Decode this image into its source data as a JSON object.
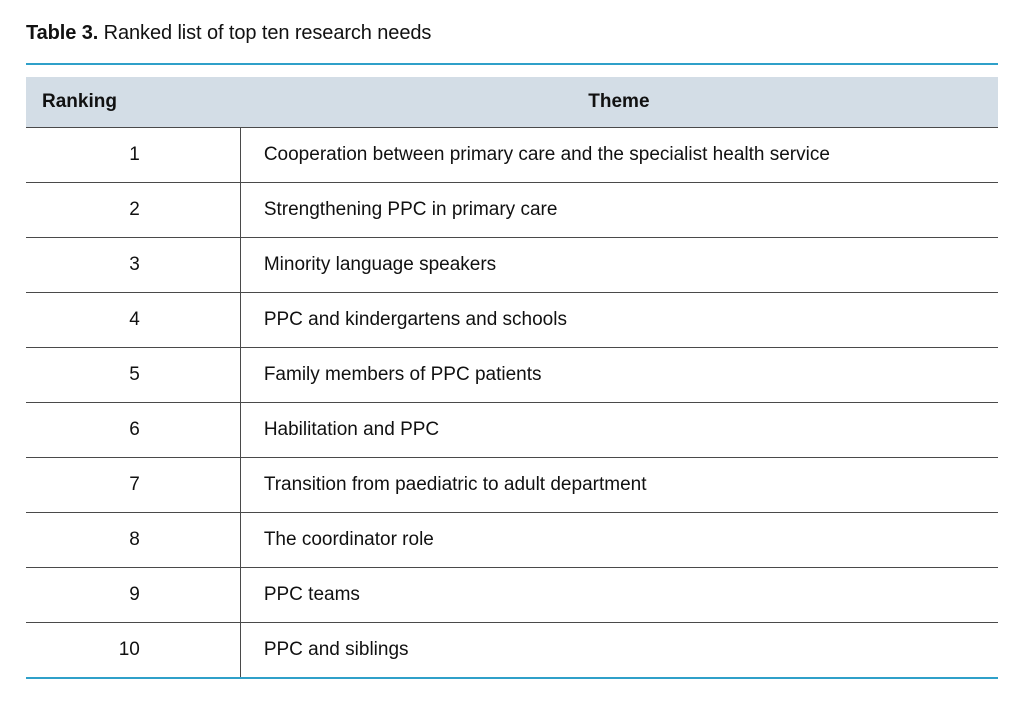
{
  "caption": {
    "label": "Table 3.",
    "text": "Ranked list of top ten research needs"
  },
  "table": {
    "type": "table",
    "accent_color": "#2fa0c9",
    "header_bg": "#d3dde6",
    "border_color": "#4a4a4a",
    "text_color": "#111111",
    "font_size": 19,
    "header_fontweight": 700,
    "columns": [
      {
        "key": "ranking",
        "label": "Ranking",
        "width_pct": 22,
        "align": "right"
      },
      {
        "key": "theme",
        "label": "Theme",
        "width_pct": 78,
        "align": "left"
      }
    ],
    "rows": [
      {
        "ranking": "1",
        "theme": "Cooperation between primary care and the specialist health service"
      },
      {
        "ranking": "2",
        "theme": "Strengthening PPC in primary care"
      },
      {
        "ranking": "3",
        "theme": "Minority language speakers"
      },
      {
        "ranking": "4",
        "theme": "PPC and kindergartens and schools"
      },
      {
        "ranking": "5",
        "theme": "Family members of PPC patients"
      },
      {
        "ranking": "6",
        "theme": "Habilitation and PPC"
      },
      {
        "ranking": "7",
        "theme": "Transition from paediatric to adult department"
      },
      {
        "ranking": "8",
        "theme": "The coordinator role"
      },
      {
        "ranking": "9",
        "theme": "PPC teams"
      },
      {
        "ranking": "10",
        "theme": "PPC and siblings"
      }
    ]
  }
}
